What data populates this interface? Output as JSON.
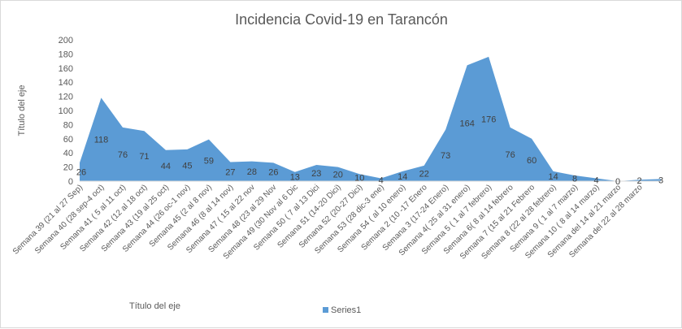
{
  "chart_data": {
    "type": "area",
    "title": "Incidencia Covid-19 en Tarancón",
    "xlabel": "Título del eje",
    "ylabel": "Título del eje",
    "ylim": [
      0,
      200
    ],
    "yticks": [
      0,
      20,
      40,
      60,
      80,
      100,
      120,
      140,
      160,
      180,
      200
    ],
    "grid": false,
    "legend_position": "bottom",
    "categories": [
      "Semana 39 (21 al 27 Sep)",
      "Semana 40 (28 sep-4 oct)",
      "Semana 41 ( 5 al 11 oct)",
      "Semana 42 (12 al 18 oct)",
      "Semana 43 (19 al 25 oct)",
      "Semana 44 (26 oc-1 nov)",
      "Semana 45 (2 al 8 nov)",
      "Semana 46 (8 al 14 nov)",
      "Semana 47 ( 15 al 22 nov",
      "Semana 48 (23 al 29 Nov",
      "Semana 49 (30 Nov al 6 Dic",
      "Semana 50 ( 7 al 13 Dici",
      "Semana 51 (14-20 Dici)",
      "Semana 52 (20-27 Dici)",
      "Semana 53 (28 dic-3 ene)",
      "Semana 54 ( al 10 enero)",
      "Semana 2 (10 -17 Enero",
      "Semana 3 (17-24 Enero)",
      "Semana 4( 25 al 31 enero)",
      "Semana 5 ( 1 al 7 febrero)",
      "Semana 6( 8 al 14 febrero",
      "Semana 7 (15 al 21 Febrero",
      "Semana 8 (22 al 28 febrero)",
      "Semana 9 ( 1 al 7 marzo)",
      "Semana 10 ( 8 al 14 marzo)",
      "Semana del 14 al 21 marzo",
      "Semana del 22 al 28 marzo",
      ""
    ],
    "series": [
      {
        "name": "Series1",
        "color": "#5b9bd5",
        "values": [
          26,
          118,
          76,
          71,
          44,
          45,
          59,
          27,
          28,
          26,
          13,
          23,
          20,
          10,
          4,
          14,
          22,
          73,
          164,
          176,
          76,
          60,
          14,
          8,
          4,
          0,
          2,
          3
        ]
      }
    ]
  }
}
